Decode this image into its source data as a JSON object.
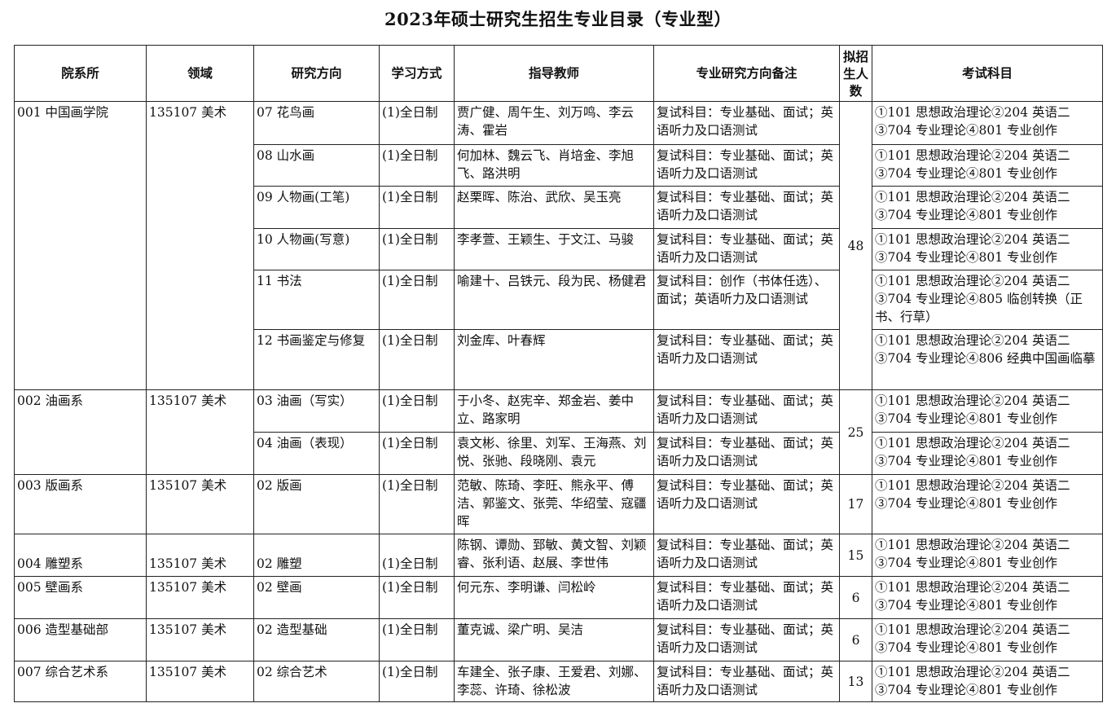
{
  "title": "2023年硕士研究生招生专业目录（专业型）",
  "headers": [
    "院系所",
    "领域",
    "研究方向",
    "学习方式",
    "指导教师",
    "专业研究方向备注",
    "拟招生人数",
    "考试科目"
  ],
  "departments": [
    {
      "name": "001 中国画学院",
      "field": "135107 美术",
      "count": "48",
      "rows": [
        {
          "direction": "07 花鸟画",
          "mode": "(1)全日制",
          "teachers": "贾广健、周午生、刘万鸣、李云涛、霍岩",
          "note": "复试科目：专业基础、面试；英语听力及口语测试",
          "exam": "①101 思想政治理论②204 英语二③704 专业理论④801 专业创作"
        },
        {
          "direction": "08 山水画",
          "mode": "(1)全日制",
          "teachers": "何加林、魏云飞、肖培金、李旭飞、路洪明",
          "note": "复试科目：专业基础、面试；英语听力及口语测试",
          "exam": "①101 思想政治理论②204 英语二③704 专业理论④801 专业创作"
        },
        {
          "direction": "09 人物画(工笔)",
          "mode": "(1)全日制",
          "teachers": "赵栗晖、陈治、武欣、吴玉亮",
          "note": "复试科目：专业基础、面试；英语听力及口语测试",
          "exam": "①101 思想政治理论②204 英语二③704 专业理论④801 专业创作"
        },
        {
          "direction": "10 人物画(写意)",
          "mode": "(1)全日制",
          "teachers": "李孝萱、王颖生、于文江、马骏",
          "note": "复试科目：专业基础、面试；英语听力及口语测试",
          "exam": "①101 思想政治理论②204 英语二③704 专业理论④801 专业创作"
        },
        {
          "direction": "11 书法",
          "mode": "(1)全日制",
          "teachers": "喻建十、吕铁元、段为民、杨健君",
          "note": "复试科目：创作（书体任选）、面试；英语听力及口语测试",
          "exam": "①101 思想政治理论②204 英语二③704 专业理论④805 临创转换（正书、行草）"
        },
        {
          "direction": "12 书画鉴定与修复",
          "mode": "(1)全日制",
          "teachers": "刘金库、叶春辉",
          "note": "复试科目：专业基础、面试；英语听力及口语测试",
          "exam": "①101 思想政治理论②204 英语二③704 专业理论④806 经典中国画临摹"
        }
      ]
    },
    {
      "name": "002 油画系",
      "field": "135107 美术",
      "count": "25",
      "rows": [
        {
          "direction": "03 油画（写实）",
          "mode": "(1)全日制",
          "teachers": "于小冬、赵宪辛、郑金岩、姜中立、路家明",
          "note": "复试科目：专业基础、面试；英语听力及口语测试",
          "exam": "①101 思想政治理论②204 英语二③704 专业理论④801 专业创作"
        },
        {
          "direction": "04 油画（表现）",
          "mode": "(1)全日制",
          "teachers": "袁文彬、徐里、刘军、王海燕、刘悦、张驰、段晓刚、袁元",
          "note": "复试科目：专业基础、面试；英语听力及口语测试",
          "exam": "①101 思想政治理论②204 英语二③704 专业理论④801 专业创作"
        }
      ]
    },
    {
      "name": "003 版画系",
      "field": "135107 美术",
      "count": "17",
      "rows": [
        {
          "direction": "02 版画",
          "mode": "(1)全日制",
          "teachers": "范敏、陈琦、李旺、熊永平、傅洁、郭鉴文、张莞、华绍莹、寇疆晖",
          "note": "复试科目：专业基础、面试；英语听力及口语测试",
          "exam": "①101 思想政治理论②204 英语二③704 专业理论④801 专业创作"
        }
      ]
    },
    {
      "name": "004 雕塑系",
      "field": "135107 美术",
      "count": "15",
      "bottom": true,
      "rows": [
        {
          "direction": "02 雕塑",
          "mode": "(1)全日制",
          "teachers": "陈钢、谭勋、郅敏、黄文智、刘颖睿、张利语、赵展、李世伟",
          "note": "复试科目：专业基础、面试；英语听力及口语测试",
          "exam": "①101 思想政治理论②204 英语二③704 专业理论④801 专业创作"
        }
      ]
    },
    {
      "name": "005 壁画系",
      "field": "135107 美术",
      "count": "6",
      "rows": [
        {
          "direction": "02 壁画",
          "mode": "(1)全日制",
          "teachers": "何元东、李明谦、闫松岭",
          "note": "复试科目：专业基础、面试；英语听力及口语测试",
          "exam": "①101 思想政治理论②204 英语二③704 专业理论④801 专业创作"
        }
      ]
    },
    {
      "name": "006 造型基础部",
      "field": "135107 美术",
      "count": "6",
      "rows": [
        {
          "direction": "02 造型基础",
          "mode": "(1)全日制",
          "teachers": "董克诚、梁广明、吴洁",
          "note": "复试科目：专业基础、面试；英语听力及口语测试",
          "exam": "①101 思想政治理论②204 英语二③704 专业理论④801 专业创作"
        }
      ]
    },
    {
      "name": "007 综合艺术系",
      "field": "135107 美术",
      "count": "13",
      "rows": [
        {
          "direction": "02 综合艺术",
          "mode": "(1)全日制",
          "teachers": "车建全、张子康、王爱君、刘娜、李蕊、许琦、徐松波",
          "note": "复试科目：专业基础、面试；英语听力及口语测试",
          "exam": "①101 思想政治理论②204 英语二③704 专业理论④801 专业创作"
        }
      ]
    }
  ]
}
